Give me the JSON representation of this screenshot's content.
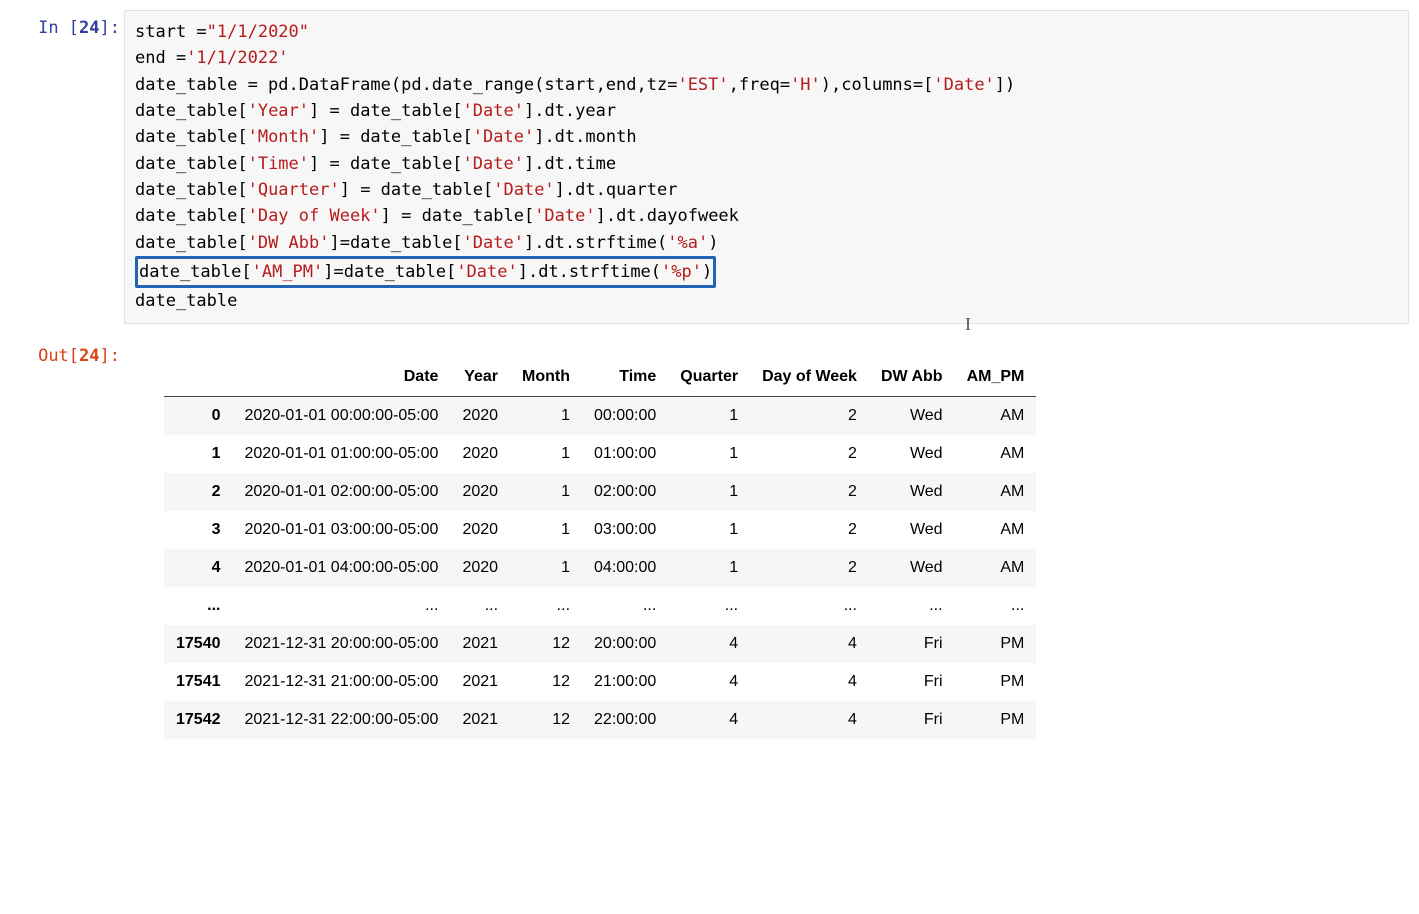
{
  "execution_count": 24,
  "prompt_in_prefix": "In [",
  "prompt_in_suffix": "]:",
  "prompt_out_prefix": "Out[",
  "prompt_out_suffix": "]:",
  "code": {
    "l0_a": "start =",
    "l0_s": "\"1/1/2020\"",
    "l1_a": "end =",
    "l1_s": "'1/1/2022'",
    "l2_a": "date_table = pd.DataFrame(pd.date_range(start,end,tz=",
    "l2_s1": "'EST'",
    "l2_b": ",freq=",
    "l2_s2": "'H'",
    "l2_c": "),columns=[",
    "l2_s3": "'Date'",
    "l2_d": "])",
    "l3_a": "date_table[",
    "l3_s1": "'Year'",
    "l3_b": "] = date_table[",
    "l3_s2": "'Date'",
    "l3_c": "].dt.year",
    "l4_a": "date_table[",
    "l4_s1": "'Month'",
    "l4_b": "] = date_table[",
    "l4_s2": "'Date'",
    "l4_c": "].dt.month",
    "l5_a": "date_table[",
    "l5_s1": "'Time'",
    "l5_b": "] = date_table[",
    "l5_s2": "'Date'",
    "l5_c": "].dt.time",
    "l6_a": "date_table[",
    "l6_s1": "'Quarter'",
    "l6_b": "] = date_table[",
    "l6_s2": "'Date'",
    "l6_c": "].dt.quarter",
    "l7_a": "date_table[",
    "l7_s1": "'Day of Week'",
    "l7_b": "] = date_table[",
    "l7_s2": "'Date'",
    "l7_c": "].dt.dayofweek",
    "l8_a": "date_table[",
    "l8_s1": "'DW Abb'",
    "l8_b": "]=date_table[",
    "l8_s2": "'Date'",
    "l8_c": "].dt.strftime(",
    "l8_s3": "'%a'",
    "l8_d": ")",
    "l9_a": "date_table[",
    "l9_s1": "'AM_PM'",
    "l9_b": "]=date_table[",
    "l9_s2": "'Date'",
    "l9_c": "].dt.strftime(",
    "l9_s3": "'%p'",
    "l9_d": ")",
    "l10": "date_table"
  },
  "highlight_code_line_index": 9,
  "highlight_column": "AM_PM",
  "table": {
    "columns": [
      "Date",
      "Year",
      "Month",
      "Time",
      "Quarter",
      "Day of Week",
      "DW Abb",
      "AM_PM"
    ],
    "rows": [
      {
        "idx": "0",
        "cells": [
          "2020-01-01 00:00:00-05:00",
          "2020",
          "1",
          "00:00:00",
          "1",
          "2",
          "Wed",
          "AM"
        ]
      },
      {
        "idx": "1",
        "cells": [
          "2020-01-01 01:00:00-05:00",
          "2020",
          "1",
          "01:00:00",
          "1",
          "2",
          "Wed",
          "AM"
        ]
      },
      {
        "idx": "2",
        "cells": [
          "2020-01-01 02:00:00-05:00",
          "2020",
          "1",
          "02:00:00",
          "1",
          "2",
          "Wed",
          "AM"
        ]
      },
      {
        "idx": "3",
        "cells": [
          "2020-01-01 03:00:00-05:00",
          "2020",
          "1",
          "03:00:00",
          "1",
          "2",
          "Wed",
          "AM"
        ]
      },
      {
        "idx": "4",
        "cells": [
          "2020-01-01 04:00:00-05:00",
          "2020",
          "1",
          "04:00:00",
          "1",
          "2",
          "Wed",
          "AM"
        ]
      },
      {
        "idx": "...",
        "cells": [
          "...",
          "...",
          "...",
          "...",
          "...",
          "...",
          "...",
          "..."
        ]
      },
      {
        "idx": "17540",
        "cells": [
          "2021-12-31 20:00:00-05:00",
          "2021",
          "12",
          "20:00:00",
          "4",
          "4",
          "Fri",
          "PM"
        ]
      },
      {
        "idx": "17541",
        "cells": [
          "2021-12-31 21:00:00-05:00",
          "2021",
          "12",
          "21:00:00",
          "4",
          "4",
          "Fri",
          "PM"
        ]
      },
      {
        "idx": "17542",
        "cells": [
          "2021-12-31 22:00:00-05:00",
          "2021",
          "12",
          "22:00:00",
          "4",
          "4",
          "Fri",
          "PM"
        ]
      }
    ]
  },
  "colors": {
    "highlight_border": "#2462b5",
    "string_color": "#b71c1c",
    "in_prompt_color": "#303f9f",
    "out_prompt_color": "#d84315",
    "input_bg": "#f7f7f7",
    "row_alt_bg": "#f6f6f6"
  }
}
